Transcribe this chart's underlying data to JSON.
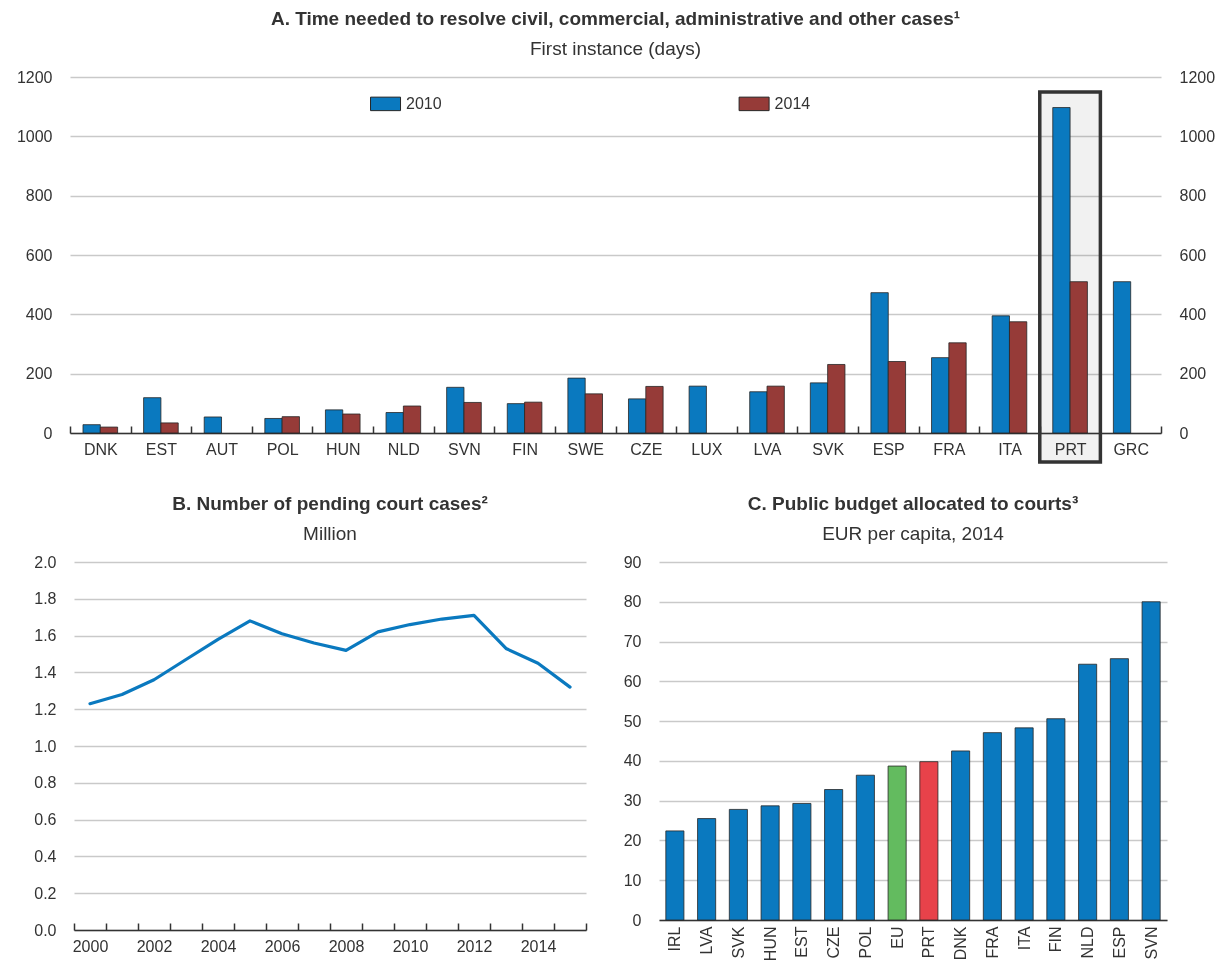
{
  "chart_data": [
    {
      "type": "bar",
      "title": "A. Time needed to resolve civil, commercial, administrative and other cases¹",
      "subtitle": "First instance (days)",
      "categories": [
        "DNK",
        "EST",
        "AUT",
        "POL",
        "HUN",
        "NLD",
        "SVN",
        "FIN",
        "SWE",
        "CZE",
        "LUX",
        "LVA",
        "SVK",
        "ESP",
        "FRA",
        "ITA",
        "PRT",
        "GRC"
      ],
      "series": [
        {
          "name": "2010",
          "color": "#0a79bf",
          "values": [
            28,
            119,
            54,
            49,
            78,
            69,
            154,
            99,
            185,
            115,
            158,
            139,
            169,
            473,
            254,
            395,
            1097,
            510
          ]
        },
        {
          "name": "2014",
          "color": "#963b38",
          "values": [
            20,
            34,
            null,
            55,
            64,
            91,
            103,
            104,
            132,
            157,
            null,
            158,
            231,
            241,
            304,
            375,
            510,
            null
          ]
        }
      ],
      "ylim": [
        0,
        1200
      ],
      "yticks": [
        0,
        200,
        400,
        600,
        800,
        1000,
        1200
      ],
      "y2lim": [
        0,
        1200
      ],
      "y2ticks": [
        0,
        200,
        400,
        600,
        800,
        1000,
        1200
      ],
      "grid": "y",
      "legend": "top",
      "bands": [
        {
          "axis": "x",
          "from": "PRT",
          "to": "PRT",
          "color": "#333333"
        }
      ]
    },
    {
      "type": "line",
      "title": "B. Number of pending court cases²",
      "subtitle": "Million",
      "categories": [
        "2000",
        null,
        "2002",
        null,
        "2004",
        null,
        "2006",
        null,
        "2008",
        null,
        "2010",
        null,
        "2012",
        null,
        "2014",
        null
      ],
      "series": [
        {
          "color": "#0a79bf",
          "values": [
            1.23,
            1.28,
            1.36,
            1.47,
            1.58,
            1.68,
            1.61,
            1.56,
            1.52,
            1.62,
            1.66,
            1.69,
            1.71,
            1.53,
            1.45,
            1.32
          ]
        }
      ],
      "ylim": [
        0,
        2
      ],
      "yticks": [
        {
          "value": 0,
          "label": "0.0"
        },
        0.2,
        0.4,
        0.6,
        0.8,
        {
          "value": 1,
          "label": "1.0"
        },
        1.2,
        1.4,
        1.6,
        1.8,
        {
          "value": 2,
          "label": "2.0"
        }
      ],
      "grid": "y"
    },
    {
      "type": "bar",
      "title": "C. Public budget allocated to courts³",
      "subtitle": "EUR per capita, 2014",
      "categories": [
        "IRL",
        "LVA",
        "SVK",
        "HUN",
        "EST",
        "CZE",
        "POL",
        "EU",
        "PRT",
        "DNK",
        "FRA",
        "ITA",
        "FIN",
        "NLD",
        "ESP",
        "SVN"
      ],
      "values": [
        22.4,
        25.5,
        27.8,
        28.7,
        29.3,
        32.8,
        36.4,
        38.7,
        39.8,
        42.5,
        47.1,
        48.3,
        50.6,
        64.3,
        65.7,
        80
      ],
      "colors": [
        "#0a79bf",
        "#0a79bf",
        "#0a79bf",
        "#0a79bf",
        "#0a79bf",
        "#0a79bf",
        "#0a79bf",
        "#63bb5f",
        "#e8424a",
        "#0a79bf",
        "#0a79bf",
        "#0a79bf",
        "#0a79bf",
        "#0a79bf",
        "#0a79bf",
        "#0a79bf"
      ],
      "ylim": [
        0,
        90
      ],
      "yticks": [
        0,
        10,
        20,
        30,
        40,
        50,
        60,
        70,
        80,
        90
      ],
      "grid": "y"
    }
  ]
}
